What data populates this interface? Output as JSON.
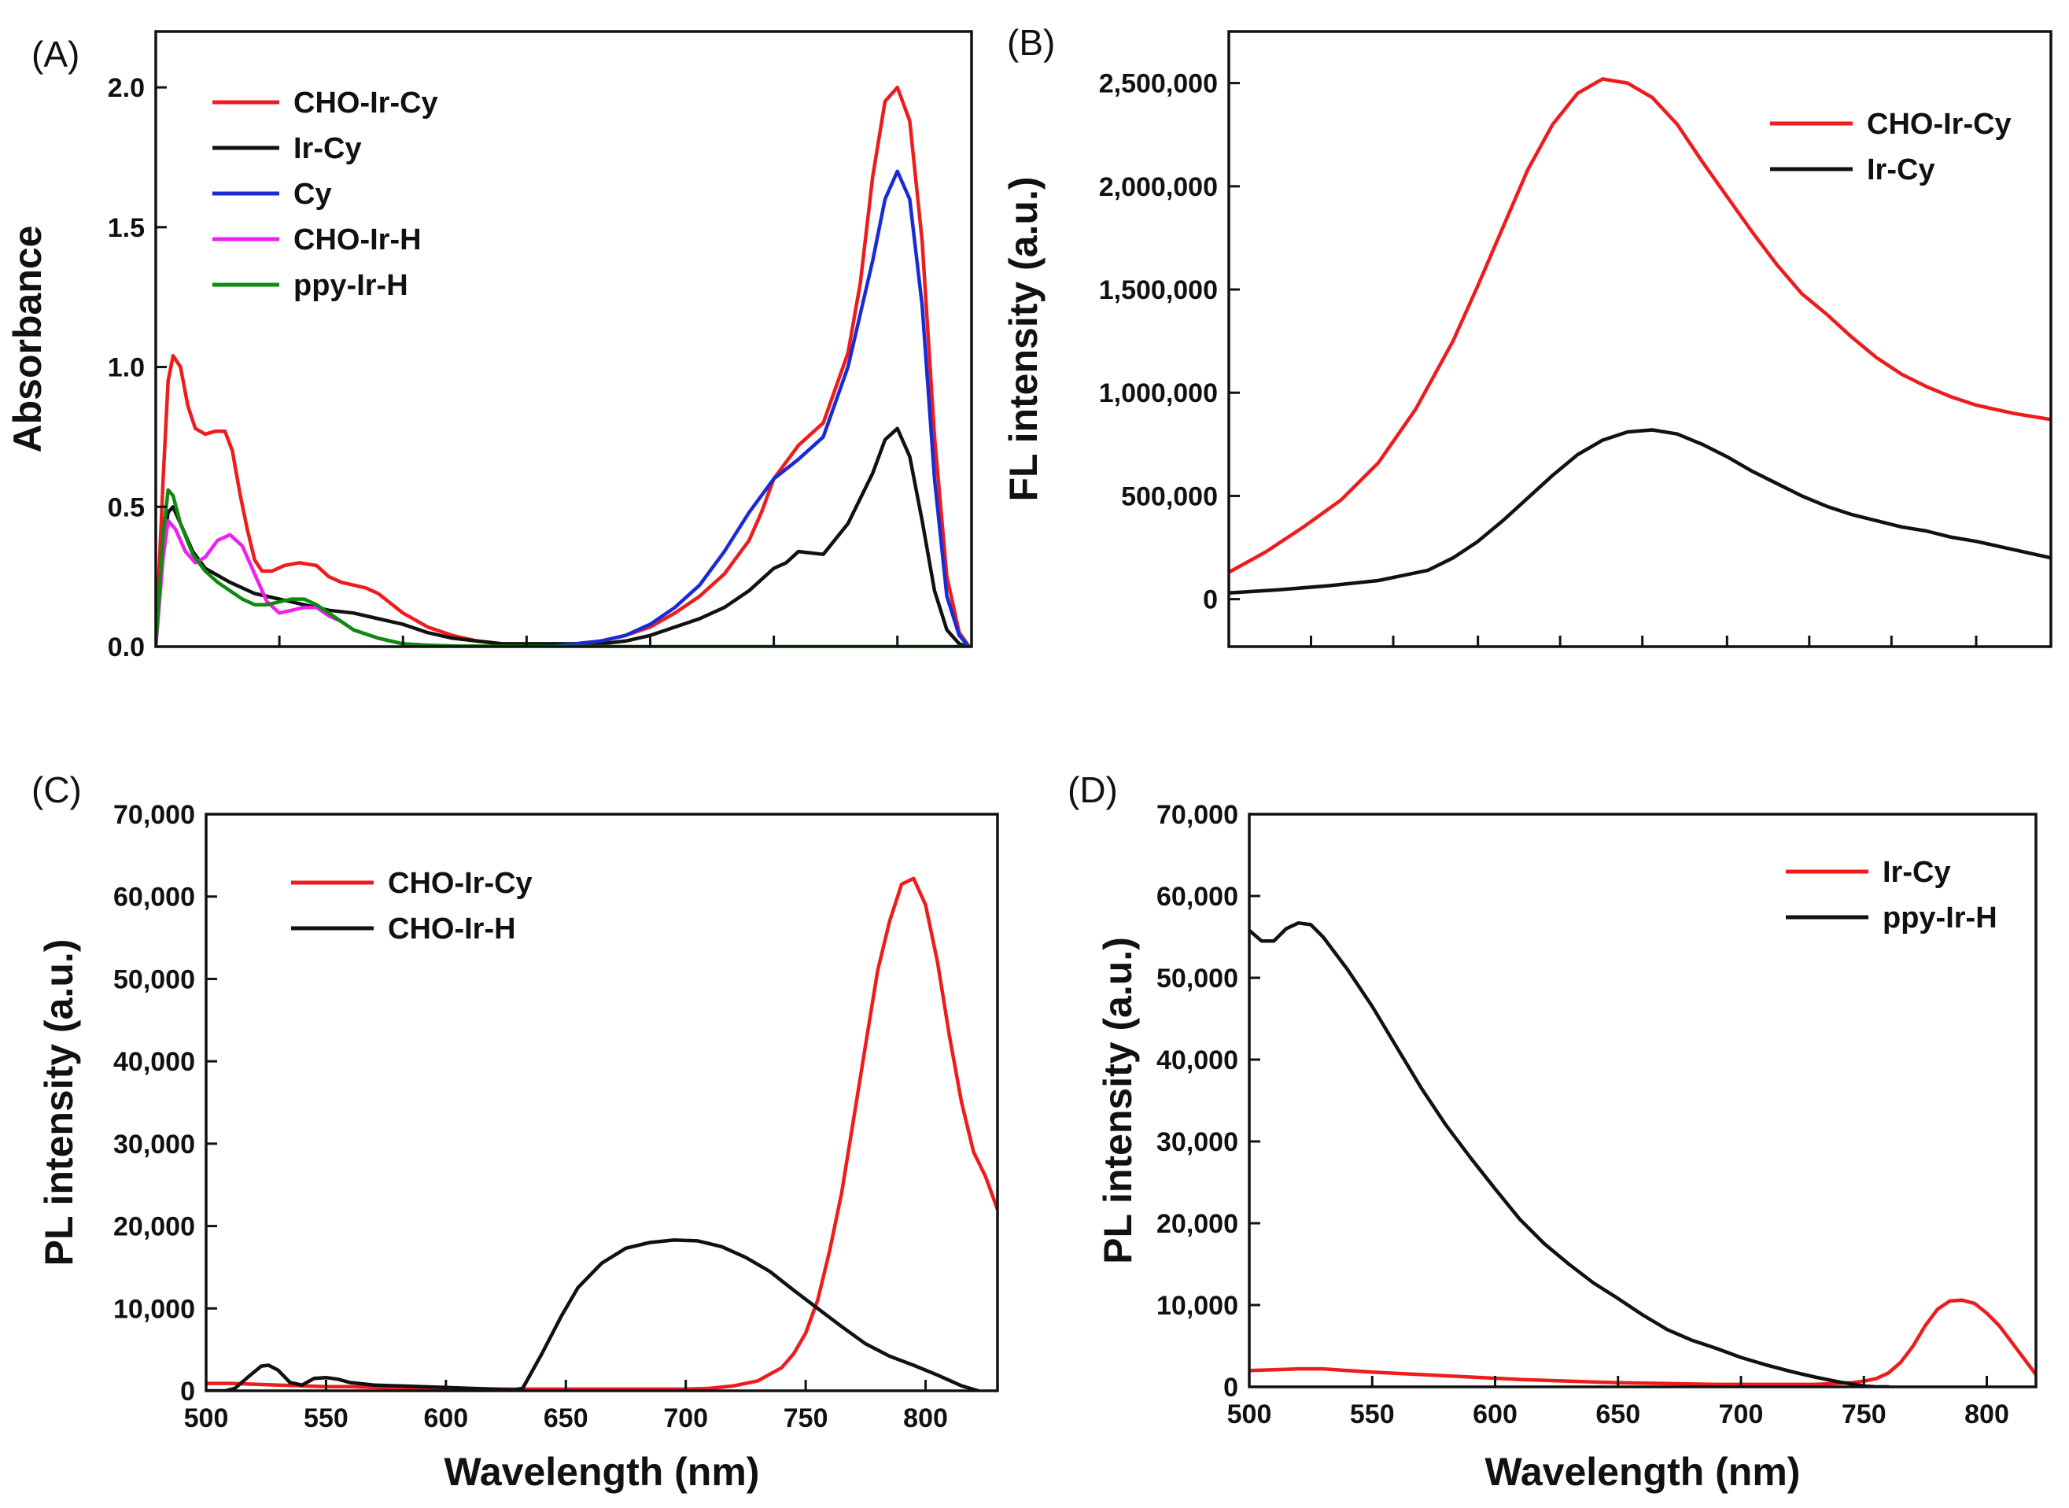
{
  "chart_data": [
    {
      "panel": "(A)",
      "type": "line",
      "title": "",
      "xlabel": "",
      "ylabel": "Absorbance",
      "xlim": [
        500,
        830
      ],
      "ylim": [
        0,
        2.2
      ],
      "x_ticks": [
        500,
        550,
        600,
        650,
        700,
        750,
        800
      ],
      "x_tick_labels": [],
      "y_ticks": [
        0,
        0.5,
        1.0,
        1.5,
        2.0
      ],
      "y_tick_labels": [
        "0.0",
        "0.5",
        "1.0",
        "1.5",
        "2.0"
      ],
      "legend_position": "top-left",
      "series": [
        {
          "name": "CHO-Ir-Cy",
          "color": "#ee1c1c",
          "x": [
            500,
            503,
            505,
            507,
            510,
            513,
            516,
            520,
            524,
            528,
            531,
            534,
            537,
            540,
            543,
            547,
            552,
            558,
            565,
            570,
            575,
            580,
            585,
            590,
            600,
            610,
            620,
            630,
            640,
            650,
            660,
            670,
            680,
            690,
            700,
            710,
            720,
            730,
            740,
            745,
            750,
            760,
            770,
            780,
            785,
            790,
            795,
            800,
            805,
            810,
            815,
            820,
            825,
            829
          ],
          "y": [
            0,
            0.6,
            0.95,
            1.04,
            1.0,
            0.86,
            0.78,
            0.76,
            0.77,
            0.77,
            0.7,
            0.55,
            0.42,
            0.31,
            0.27,
            0.27,
            0.29,
            0.3,
            0.29,
            0.25,
            0.23,
            0.22,
            0.21,
            0.19,
            0.12,
            0.07,
            0.04,
            0.02,
            0.01,
            0.005,
            0.005,
            0.01,
            0.02,
            0.04,
            0.07,
            0.12,
            0.18,
            0.26,
            0.38,
            0.48,
            0.6,
            0.72,
            0.8,
            1.05,
            1.3,
            1.68,
            1.95,
            2.0,
            1.88,
            1.45,
            0.75,
            0.25,
            0.05,
            0
          ]
        },
        {
          "name": "Ir-Cy",
          "color": "#111111",
          "x": [
            500,
            503,
            505,
            507,
            510,
            515,
            520,
            530,
            540,
            550,
            560,
            570,
            580,
            590,
            600,
            610,
            620,
            630,
            640,
            650,
            660,
            670,
            680,
            690,
            700,
            710,
            720,
            730,
            740,
            750,
            755,
            760,
            770,
            780,
            790,
            795,
            800,
            805,
            810,
            815,
            820,
            825,
            829
          ],
          "y": [
            0,
            0.35,
            0.48,
            0.5,
            0.44,
            0.34,
            0.28,
            0.23,
            0.19,
            0.17,
            0.15,
            0.13,
            0.12,
            0.1,
            0.08,
            0.05,
            0.03,
            0.02,
            0.01,
            0.01,
            0.01,
            0.01,
            0.01,
            0.02,
            0.04,
            0.07,
            0.1,
            0.14,
            0.2,
            0.28,
            0.3,
            0.34,
            0.33,
            0.44,
            0.62,
            0.74,
            0.78,
            0.68,
            0.45,
            0.2,
            0.06,
            0.01,
            0
          ]
        },
        {
          "name": "Cy",
          "color": "#1a2bd6",
          "x": [
            660,
            670,
            680,
            690,
            700,
            710,
            720,
            730,
            740,
            750,
            760,
            770,
            780,
            790,
            795,
            800,
            805,
            810,
            815,
            820,
            825,
            829
          ],
          "y": [
            0,
            0.01,
            0.02,
            0.04,
            0.08,
            0.14,
            0.22,
            0.34,
            0.48,
            0.6,
            0.67,
            0.75,
            1.0,
            1.38,
            1.6,
            1.7,
            1.6,
            1.22,
            0.6,
            0.18,
            0.04,
            0
          ]
        },
        {
          "name": "CHO-Ir-H",
          "color": "#ee20ee",
          "x": [
            500,
            503,
            505,
            508,
            512,
            516,
            520,
            525,
            530,
            535,
            540,
            545,
            550,
            555,
            560,
            565,
            570,
            575,
            580,
            590,
            600,
            610,
            620,
            630
          ],
          "y": [
            0,
            0.32,
            0.45,
            0.42,
            0.34,
            0.3,
            0.32,
            0.38,
            0.4,
            0.36,
            0.26,
            0.16,
            0.12,
            0.13,
            0.14,
            0.14,
            0.11,
            0.09,
            0.06,
            0.03,
            0.01,
            0.005,
            0.002,
            0.0
          ]
        },
        {
          "name": "ppy-Ir-H",
          "color": "#0e8a0e",
          "x": [
            500,
            503,
            505,
            507,
            510,
            515,
            520,
            525,
            530,
            535,
            540,
            545,
            550,
            555,
            560,
            565,
            570,
            575,
            580,
            590,
            600,
            610,
            620,
            700,
            800,
            829
          ],
          "y": [
            0,
            0.4,
            0.56,
            0.54,
            0.44,
            0.33,
            0.27,
            0.23,
            0.2,
            0.17,
            0.15,
            0.15,
            0.16,
            0.17,
            0.17,
            0.15,
            0.12,
            0.09,
            0.06,
            0.03,
            0.01,
            0.005,
            0.002,
            0.0,
            0.0,
            0.0
          ]
        }
      ]
    },
    {
      "panel": "(B)",
      "type": "line",
      "title": "",
      "xlabel": "",
      "ylabel": "FL intensity (a.u.)",
      "xlim": [
        500,
        830
      ],
      "ylim": [
        -230000,
        2750000
      ],
      "x_ticks": [
        533,
        566,
        600,
        633,
        666,
        700,
        733,
        766,
        800
      ],
      "x_tick_labels": [],
      "y_ticks": [
        0,
        500000,
        1000000,
        1500000,
        2000000,
        2500000
      ],
      "y_tick_labels": [
        "0",
        "500,000",
        "1,000,000",
        "1,500,000",
        "2,000,000",
        "2,500,000"
      ],
      "legend_position": "top-right",
      "series": [
        {
          "name": "CHO-Ir-Cy",
          "color": "#ee1c1c",
          "x": [
            500,
            515,
            530,
            545,
            560,
            575,
            590,
            600,
            610,
            620,
            630,
            640,
            650,
            660,
            670,
            680,
            690,
            700,
            710,
            720,
            730,
            740,
            750,
            760,
            770,
            780,
            790,
            800,
            815,
            830
          ],
          "y": [
            130000,
            230000,
            350000,
            480000,
            660000,
            920000,
            1250000,
            1520000,
            1800000,
            2080000,
            2300000,
            2450000,
            2520000,
            2500000,
            2430000,
            2300000,
            2120000,
            1950000,
            1780000,
            1620000,
            1480000,
            1380000,
            1270000,
            1170000,
            1090000,
            1030000,
            980000,
            940000,
            900000,
            870000
          ]
        },
        {
          "name": "Ir-Cy",
          "color": "#111111",
          "x": [
            500,
            520,
            540,
            560,
            580,
            590,
            600,
            610,
            620,
            630,
            640,
            650,
            660,
            670,
            680,
            690,
            700,
            710,
            720,
            730,
            740,
            750,
            760,
            770,
            780,
            790,
            800,
            815,
            830
          ],
          "y": [
            30000,
            45000,
            65000,
            90000,
            140000,
            200000,
            280000,
            380000,
            490000,
            600000,
            700000,
            770000,
            810000,
            820000,
            800000,
            750000,
            690000,
            620000,
            560000,
            500000,
            450000,
            410000,
            380000,
            350000,
            330000,
            300000,
            280000,
            240000,
            200000
          ]
        }
      ]
    },
    {
      "panel": "(C)",
      "type": "line",
      "title": "",
      "xlabel": "Wavelength (nm)",
      "ylabel": "PL intensity (a.u.)",
      "xlim": [
        500,
        830
      ],
      "ylim": [
        0,
        70000
      ],
      "x_ticks": [
        500,
        550,
        600,
        650,
        700,
        750,
        800
      ],
      "x_tick_labels": [
        "500",
        "550",
        "600",
        "650",
        "700",
        "750",
        "800"
      ],
      "y_ticks": [
        0,
        10000,
        20000,
        30000,
        40000,
        50000,
        60000,
        70000
      ],
      "y_tick_labels": [
        "0",
        "10,000",
        "20,000",
        "30,000",
        "40,000",
        "50,000",
        "60,000",
        "70,000"
      ],
      "legend_position": "top-left",
      "series": [
        {
          "name": "CHO-Ir-Cy",
          "color": "#ee1c1c",
          "x": [
            500,
            510,
            520,
            530,
            540,
            550,
            560,
            570,
            580,
            590,
            600,
            620,
            640,
            660,
            680,
            700,
            710,
            720,
            730,
            740,
            745,
            750,
            755,
            760,
            765,
            770,
            775,
            780,
            785,
            790,
            795,
            800,
            805,
            810,
            815,
            820,
            825,
            830
          ],
          "y": [
            900,
            900,
            800,
            700,
            600,
            500,
            500,
            400,
            300,
            300,
            200,
            200,
            200,
            200,
            200,
            200,
            300,
            600,
            1200,
            2800,
            4500,
            7000,
            11000,
            17000,
            24000,
            33000,
            42000,
            51000,
            57000,
            61500,
            62200,
            59000,
            52000,
            43000,
            35000,
            29000,
            26000,
            22000
          ]
        },
        {
          "name": "CHO-Ir-H",
          "color": "#111111",
          "x": [
            500,
            508,
            512,
            518,
            523,
            526,
            530,
            535,
            540,
            545,
            550,
            555,
            560,
            570,
            580,
            590,
            600,
            610,
            620,
            628,
            632,
            640,
            648,
            655,
            665,
            675,
            685,
            695,
            705,
            715,
            725,
            735,
            745,
            755,
            765,
            775,
            785,
            795,
            805,
            815,
            822
          ],
          "y": [
            0,
            0,
            300,
            1800,
            3000,
            3100,
            2500,
            1000,
            700,
            1500,
            1600,
            1400,
            1000,
            700,
            600,
            500,
            400,
            300,
            200,
            100,
            300,
            4500,
            9000,
            12500,
            15500,
            17300,
            18000,
            18300,
            18200,
            17500,
            16200,
            14500,
            12200,
            10000,
            7800,
            5700,
            4200,
            3100,
            1900,
            600,
            0
          ]
        }
      ]
    },
    {
      "panel": "(D)",
      "type": "line",
      "title": "",
      "xlabel": "Wavelength (nm)",
      "ylabel": "PL intensity (a.u.)",
      "xlim": [
        500,
        820
      ],
      "ylim": [
        0,
        70000
      ],
      "x_ticks": [
        500,
        550,
        600,
        650,
        700,
        750,
        800
      ],
      "x_tick_labels": [
        "500",
        "550",
        "600",
        "650",
        "700",
        "750",
        "800"
      ],
      "y_ticks": [
        0,
        10000,
        20000,
        30000,
        40000,
        50000,
        60000,
        70000
      ],
      "y_tick_labels": [
        "0",
        "10,000",
        "20,000",
        "30,000",
        "40,000",
        "50,000",
        "60,000",
        "70,000"
      ],
      "legend_position": "top-right",
      "series": [
        {
          "name": "Ir-Cy",
          "color": "#ee1c1c",
          "x": [
            500,
            510,
            520,
            530,
            540,
            550,
            570,
            590,
            610,
            630,
            650,
            670,
            690,
            710,
            730,
            745,
            750,
            755,
            760,
            765,
            770,
            775,
            780,
            785,
            790,
            795,
            800,
            805,
            810,
            815,
            820
          ],
          "y": [
            2000,
            2100,
            2200,
            2200,
            2000,
            1800,
            1500,
            1200,
            900,
            700,
            500,
            400,
            300,
            300,
            300,
            500,
            700,
            1000,
            1700,
            3000,
            5000,
            7500,
            9500,
            10500,
            10600,
            10200,
            9000,
            7500,
            5500,
            3500,
            1500
          ]
        },
        {
          "name": "ppy-Ir-H",
          "color": "#111111",
          "x": [
            500,
            505,
            510,
            515,
            520,
            525,
            530,
            540,
            550,
            560,
            570,
            580,
            590,
            600,
            610,
            620,
            630,
            640,
            650,
            660,
            670,
            680,
            690,
            700,
            710,
            720,
            730,
            740,
            750,
            755,
            760
          ],
          "y": [
            55800,
            54500,
            54500,
            56000,
            56700,
            56500,
            55000,
            51000,
            46500,
            41500,
            36500,
            32000,
            28000,
            24200,
            20500,
            17500,
            15000,
            12700,
            10800,
            8800,
            7000,
            5700,
            4700,
            3600,
            2700,
            1900,
            1200,
            600,
            100,
            0,
            0
          ]
        }
      ]
    }
  ]
}
